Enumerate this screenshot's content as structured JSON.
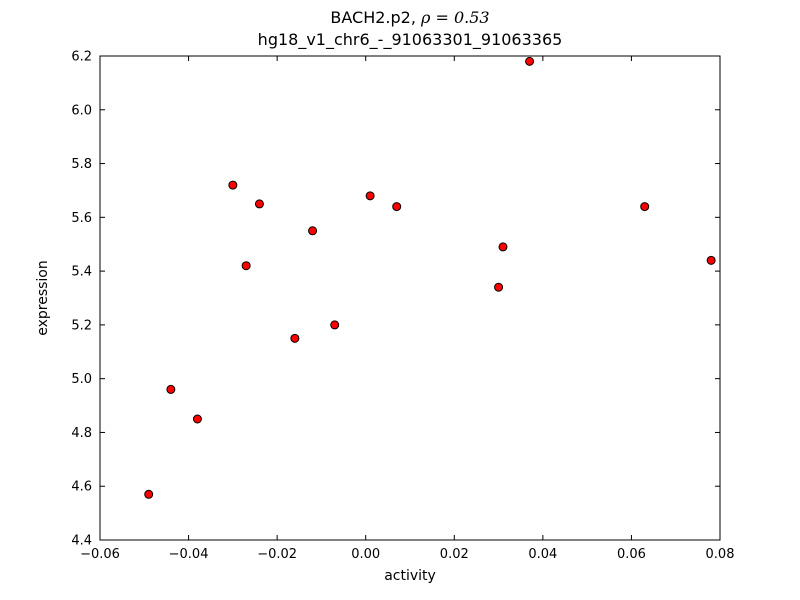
{
  "figure": {
    "title_prefix": "BACH2.p2, ",
    "title_math": "ρ = 0.53",
    "subtitle": "hg18_v1_chr6_-_91063301_91063365"
  },
  "chart_data": {
    "type": "scatter",
    "title": "BACH2.p2, ρ = 0.53",
    "subtitle": "hg18_v1_chr6_-_91063301_91063365",
    "xlabel": "activity",
    "ylabel": "expression",
    "xlim": [
      -0.06,
      0.08
    ],
    "ylim": [
      4.4,
      6.2
    ],
    "xticks": [
      -0.06,
      -0.04,
      -0.02,
      0.0,
      0.02,
      0.04,
      0.06,
      0.08
    ],
    "xtick_labels": [
      "−0.06",
      "−0.04",
      "−0.02",
      "0.00",
      "0.02",
      "0.04",
      "0.06",
      "0.08"
    ],
    "yticks": [
      4.4,
      4.6,
      4.8,
      5.0,
      5.2,
      5.4,
      5.6,
      5.8,
      6.0,
      6.2
    ],
    "ytick_labels": [
      "4.4",
      "4.6",
      "4.8",
      "5.0",
      "5.2",
      "5.4",
      "5.6",
      "5.8",
      "6.0",
      "6.2"
    ],
    "grid": false,
    "legend": null,
    "marker": {
      "shape": "circle",
      "fill": "#ff0000",
      "edge": "#000000",
      "radius_px": 4
    },
    "points": [
      [
        -0.049,
        4.57
      ],
      [
        -0.044,
        4.96
      ],
      [
        -0.038,
        4.85
      ],
      [
        -0.03,
        5.72
      ],
      [
        -0.027,
        5.42
      ],
      [
        -0.024,
        5.65
      ],
      [
        -0.016,
        5.15
      ],
      [
        -0.012,
        5.55
      ],
      [
        -0.007,
        5.2
      ],
      [
        0.001,
        5.68
      ],
      [
        0.007,
        5.64
      ],
      [
        0.03,
        5.34
      ],
      [
        0.031,
        5.49
      ],
      [
        0.037,
        6.18
      ],
      [
        0.063,
        5.64
      ],
      [
        0.078,
        5.44
      ]
    ]
  }
}
